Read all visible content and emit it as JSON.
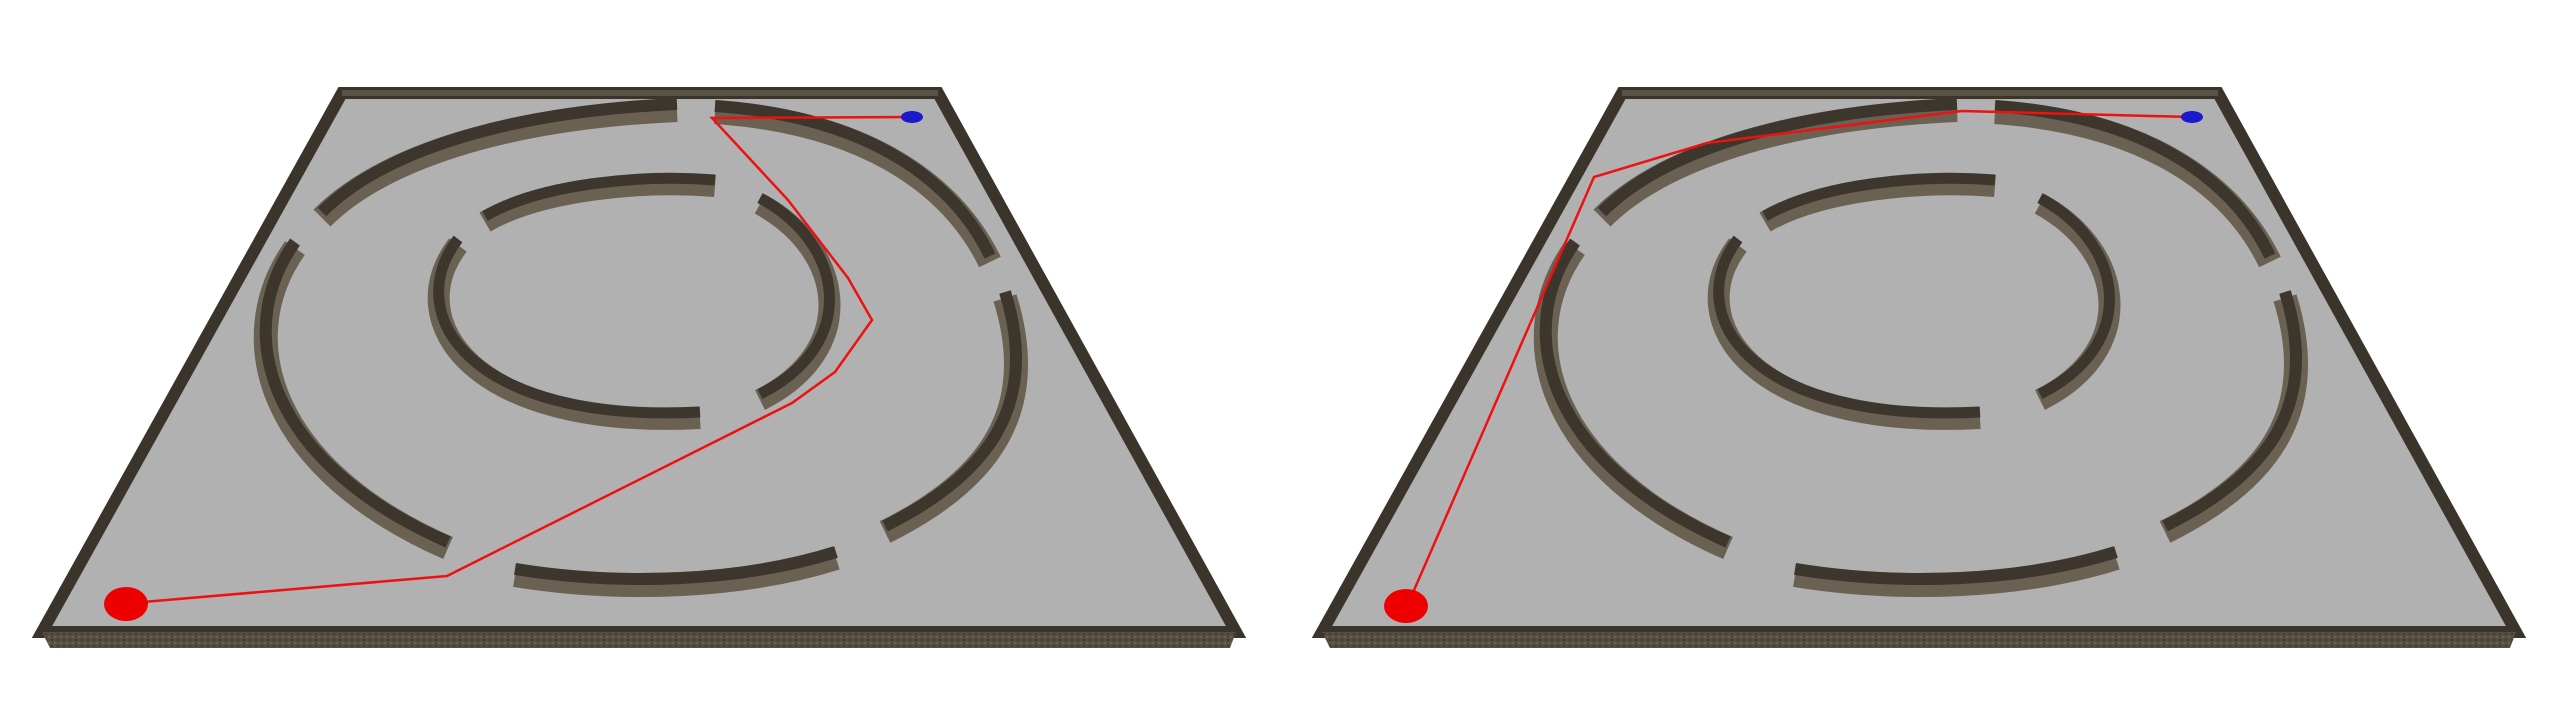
{
  "colors": {
    "background": "#ffffff",
    "floor": "#b1b1b1",
    "wall_top": "#4f483d",
    "wall_side": "#6a6152",
    "wall_edge": "#2f2a22",
    "path": "#ee1111",
    "start_marker": "#ee0000",
    "goal_marker": "#1a1acc"
  },
  "panels": [
    {
      "id": "left",
      "start_marker": "red-start-marker",
      "goal_marker": "blue-goal-marker"
    },
    {
      "id": "right",
      "start_marker": "red-start-marker",
      "goal_marker": "blue-goal-marker"
    }
  ]
}
